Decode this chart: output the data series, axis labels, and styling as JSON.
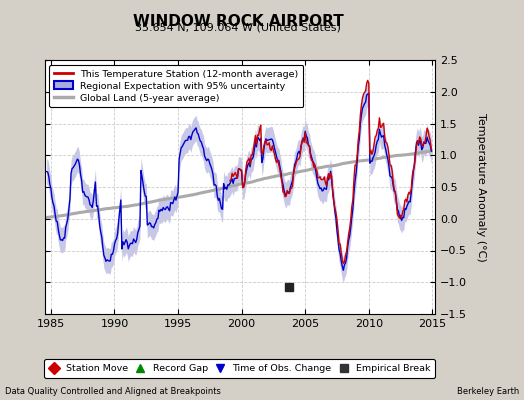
{
  "title": "WINDOW ROCK AIRPORT",
  "subtitle": "35.654 N, 109.064 W (United States)",
  "ylabel": "Temperature Anomaly (°C)",
  "xlim": [
    1984.5,
    2015.2
  ],
  "ylim": [
    -1.5,
    2.5
  ],
  "yticks": [
    -1.5,
    -1.0,
    -0.5,
    0.0,
    0.5,
    1.0,
    1.5,
    2.0,
    2.5
  ],
  "xticks": [
    1985,
    1990,
    1995,
    2000,
    2005,
    2010,
    2015
  ],
  "bg_color": "#d4d0c8",
  "plot_bg_color": "#ffffff",
  "grid_color": "#cccccc",
  "red_color": "#cc0000",
  "blue_color": "#0000cc",
  "blue_fill_color": "#aaaadd",
  "gray_color": "#aaaaaa",
  "footnote_left": "Data Quality Controlled and Aligned at Breakpoints",
  "footnote_right": "Berkeley Earth",
  "marker_empirical_x": 2003.7,
  "marker_empirical_y": -1.08,
  "bottom_legend": [
    {
      "label": "Station Move",
      "color": "#cc0000",
      "marker": "D"
    },
    {
      "label": "Record Gap",
      "color": "#008800",
      "marker": "^"
    },
    {
      "label": "Time of Obs. Change",
      "color": "#0000cc",
      "marker": "v"
    },
    {
      "label": "Empirical Break",
      "color": "#333333",
      "marker": "s"
    }
  ]
}
